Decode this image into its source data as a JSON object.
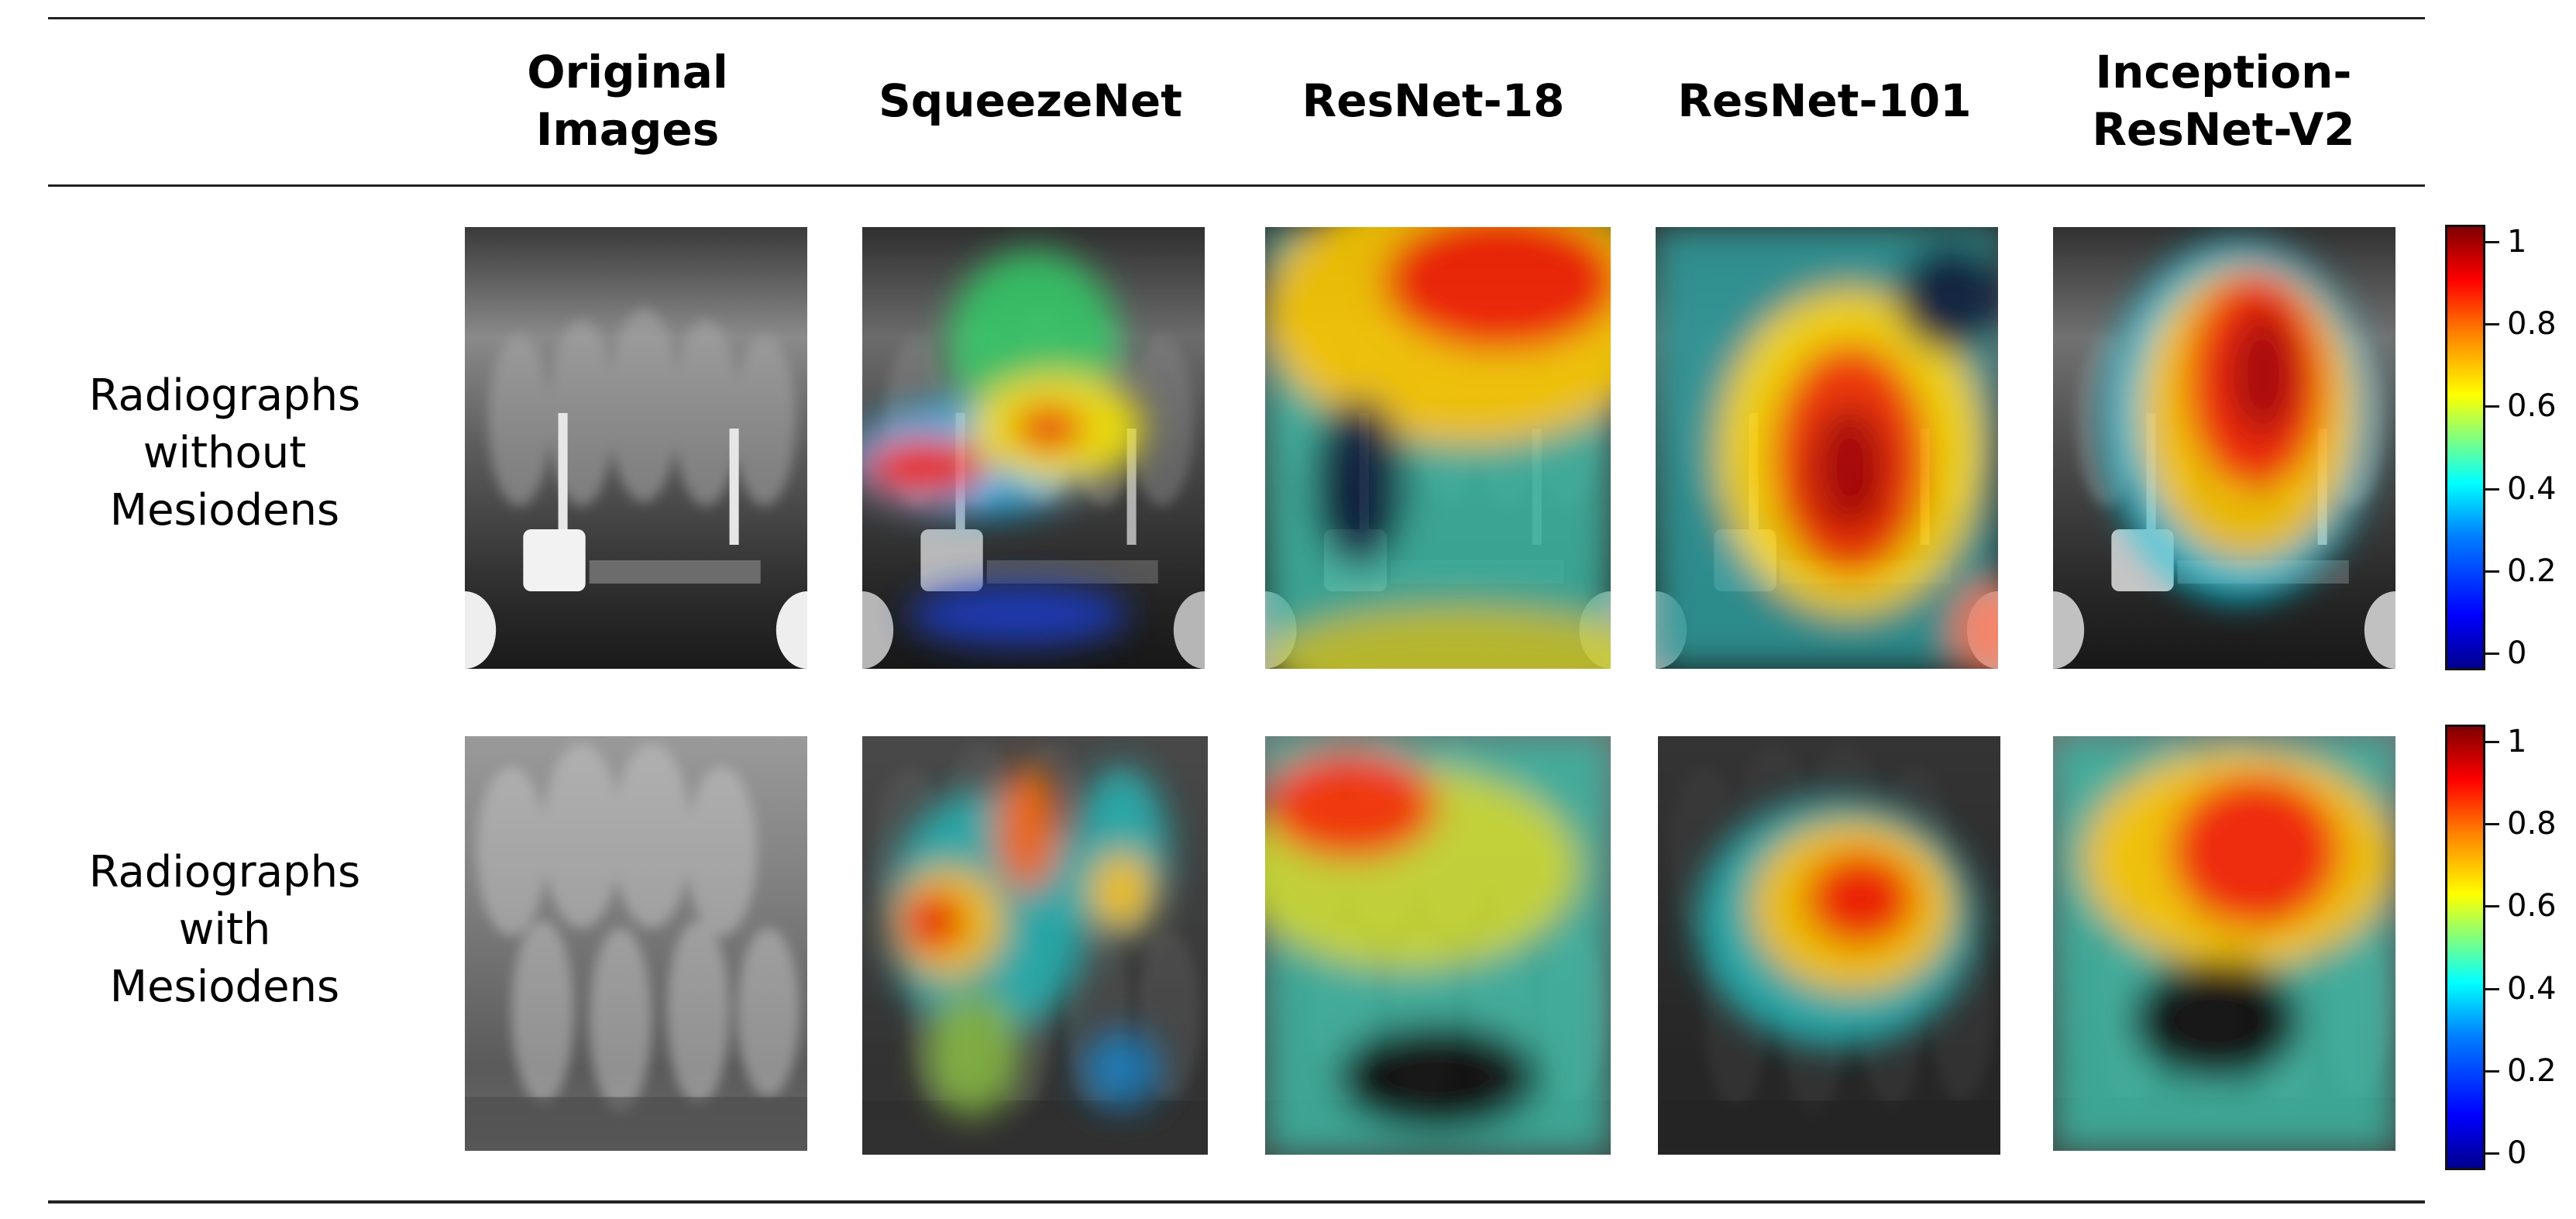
{
  "header": {
    "columns": [
      {
        "line1": "Original",
        "line2": "Images"
      },
      {
        "line1": "SqueezeNet",
        "line2": ""
      },
      {
        "line1": "ResNet-18",
        "line2": ""
      },
      {
        "line1": "ResNet-101",
        "line2": ""
      },
      {
        "line1": "Inception-",
        "line2": "ResNet-V2"
      }
    ]
  },
  "rows": [
    {
      "line1": "Radiographs",
      "line2": "without",
      "line3": "Mesiodens"
    },
    {
      "line1": "Radiographs",
      "line2": "with",
      "line3": "Mesiodens"
    }
  ],
  "colorbar": {
    "ticks": [
      "1",
      "0.8",
      "0.6",
      "0.4",
      "0.2",
      "0"
    ],
    "colormap": "jet"
  },
  "colors": {
    "rule": "#222222",
    "heat_high": "#ff0000",
    "heat_mid": "#ffff00",
    "heat_low": "#00ffff",
    "background_low": "#1a3cc8"
  }
}
